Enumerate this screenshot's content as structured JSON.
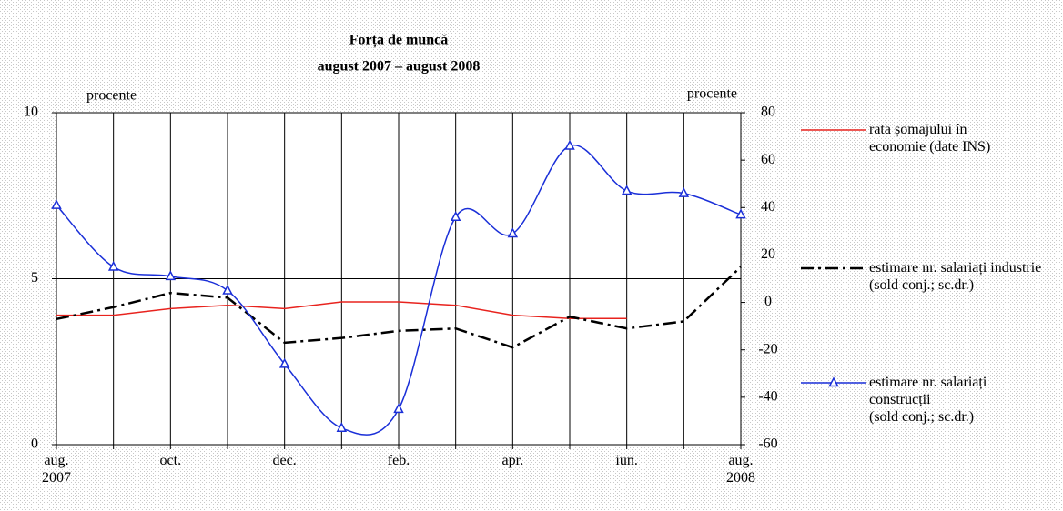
{
  "chart_data": {
    "type": "line",
    "title": "Forța de muncă",
    "subtitle": "august 2007 – august 2008",
    "y_label": "procente",
    "y2_label": "procente",
    "categories": [
      "aug.\n2007",
      null,
      "oct.",
      null,
      "dec.",
      null,
      "feb.",
      null,
      "apr.",
      null,
      "iun.",
      null,
      "aug.\n2008"
    ],
    "ylim": [
      0,
      10
    ],
    "yticks": [
      0,
      5,
      10
    ],
    "y2lim": [
      -60,
      80
    ],
    "y2ticks": [
      -60,
      -40,
      -20,
      0,
      20,
      40,
      60,
      80
    ],
    "series": [
      {
        "name": "rata șomajului în economie (date INS)",
        "color": "#e8231e",
        "style": "solid",
        "values": [
          3.9,
          3.9,
          4.1,
          4.2,
          4.1,
          4.3,
          4.3,
          4.2,
          3.9,
          3.8,
          3.8,
          null,
          null
        ]
      },
      {
        "name": "estimare nr. salariați industrie\n(sold conj.; sc.dr.)",
        "color": "#000000",
        "style": "dashdot",
        "axis": "y2",
        "values": [
          -7,
          -2,
          4,
          2,
          -17,
          -15,
          -12,
          -11,
          -19,
          -6,
          -11,
          -8,
          15
        ]
      },
      {
        "name": "estimare nr. salariați construcții\n(sold conj.; sc.dr.)",
        "color": "#1a2fd8",
        "style": "smooth",
        "marker": "triangle",
        "axis": "y2",
        "values": [
          41,
          15,
          11,
          5,
          -26,
          -53,
          -45,
          36,
          29,
          66,
          47,
          46,
          37
        ]
      }
    ]
  }
}
